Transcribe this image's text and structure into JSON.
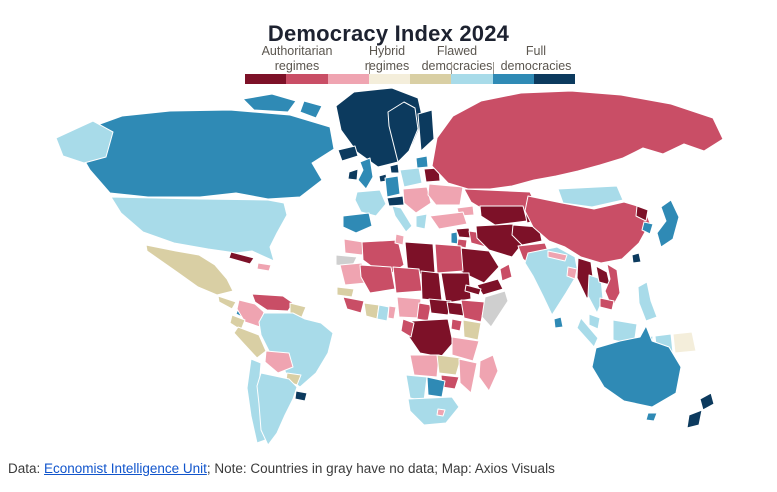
{
  "title": "Democracy Index 2024",
  "legend": {
    "labels": [
      {
        "line1": "Authoritarian",
        "line2": "regimes"
      },
      {
        "line1": "Hybrid",
        "line2": "regimes"
      },
      {
        "line1": "Flawed",
        "line2": "democracies"
      },
      {
        "line1": "Full",
        "line2": "democracies"
      }
    ]
  },
  "footer": {
    "prefix": "Data: ",
    "link": "Economist Intelligence Unit",
    "suffix": "; Note: Countries in gray have no data; Map: Axios Visuals",
    "link_color": "#1155cc"
  },
  "chart_data": {
    "type": "heatmap",
    "subtype": "choropleth world map",
    "title": "Democracy Index 2024",
    "legend_position": "top",
    "legend_categories": [
      "Authoritarian regimes",
      "Hybrid regimes",
      "Flawed democracies",
      "Full democracies"
    ],
    "color_scale": [
      "#7d1128",
      "#c94e66",
      "#efa4b1",
      "#f4eedb",
      "#d9cfa4",
      "#a8dbe9",
      "#2f8ab5",
      "#0c3a5e"
    ],
    "palette": {
      "authDark": "#7d1128",
      "authMid": "#c94e66",
      "authPink": "#efa4b1",
      "hybridCream": "#f4eedb",
      "hybridTan": "#d9cfa4",
      "flawedLight": "#a8dbe9",
      "fullTeal": "#2f8ab5",
      "fullNavy": "#0c3a5e",
      "noData": "#cfcfcf"
    },
    "regions": {
      "greenland": "fullNavy",
      "canada": "fullTeal",
      "canada_islands": "fullTeal",
      "alaska": "flawedLight",
      "usa": "flawedLight",
      "mexico": "hybridTan",
      "centralamerica": "hybridTan",
      "costarica": "fullTeal",
      "panama": "flawedLight",
      "cuba": "authDark",
      "hispaniola": "authPink",
      "venezuela": "authMid",
      "colombia": "authPink",
      "guyanas": "hybridTan",
      "brazil": "flawedLight",
      "ecuador": "hybridTan",
      "peru": "hybridTan",
      "bolivia": "authPink",
      "paraguay": "hybridTan",
      "chile": "flawedLight",
      "argentina": "flawedLight",
      "uruguay": "fullNavy",
      "iceland": "fullNavy",
      "ireland": "fullNavy",
      "uk": "fullTeal",
      "norwaysweden": "fullNavy",
      "finland": "fullNavy",
      "denmark": "fullNavy",
      "benelux": "fullNavy",
      "germany": "fullTeal",
      "france": "flawedLight",
      "spain": "fullTeal",
      "italy": "flawedLight",
      "alpine": "fullNavy",
      "poland": "flawedLight",
      "easterneurope": "authPink",
      "greece": "flawedLight",
      "baltics": "fullTeal",
      "belarus": "authDark",
      "ukraine": "authPink",
      "russia": "authMid",
      "kazakhstan": "authMid",
      "caucasus": "authPink",
      "turkey": "authPink",
      "syria": "authDark",
      "iraq": "authMid",
      "israel": "fullTeal",
      "jordan": "authMid",
      "saudiarabia": "authDark",
      "yemen": "authDark",
      "oman": "authMid",
      "iran": "authDark",
      "turkmenuzbek": "authDark",
      "kyrgyztajik": "authDark",
      "afghanistan": "authDark",
      "pakistan": "authMid",
      "china": "authMid",
      "mongolia": "flawedLight",
      "northkorea": "authDark",
      "southkorea": "fullTeal",
      "japan": "fullTeal",
      "taiwan": "fullNavy",
      "india": "flawedLight",
      "nepal": "authPink",
      "bangladesh": "authPink",
      "srilanka": "fullTeal",
      "myanmar": "authDark",
      "thailand": "flawedLight",
      "laos": "authDark",
      "vietnam": "authMid",
      "cambodia": "authMid",
      "malaysia": "flawedLight",
      "borneo": "flawedLight",
      "sumatra": "flawedLight",
      "java": "flawedLight",
      "sulawesi": "flawedLight",
      "papua_id": "flawedLight",
      "png": "hybridCream",
      "philippines": "flawedLight",
      "morocco": "authPink",
      "westernsahara": "noData",
      "algeria": "authMid",
      "tunisia": "authPink",
      "libya": "authDark",
      "egypt": "authMid",
      "mauritania": "authPink",
      "mali": "authMid",
      "niger": "authMid",
      "chad": "authDark",
      "sudan": "authDark",
      "eritrea": "authDark",
      "senegal": "hybridTan",
      "guinea": "authMid",
      "ivorycoast": "hybridTan",
      "ghana": "flawedLight",
      "benintogo": "authPink",
      "nigeria": "authPink",
      "cameroon": "authMid",
      "car": "authDark",
      "southsudan": "authDark",
      "ethiopia": "authMid",
      "somalia": "noData",
      "kenya": "hybridTan",
      "uganda": "authMid",
      "drc": "authDark",
      "congogabon": "authMid",
      "tanzania": "authPink",
      "angola": "authPink",
      "zambia": "hybridTan",
      "mozambique": "authPink",
      "zimbabwe": "authMid",
      "botswana": "fullTeal",
      "namibia": "flawedLight",
      "southafrica": "flawedLight",
      "lesotho": "authPink",
      "madagascar": "authPink",
      "australia": "fullTeal",
      "tasmania": "fullTeal",
      "nz_north": "fullNavy",
      "nz_south": "fullNavy"
    }
  }
}
